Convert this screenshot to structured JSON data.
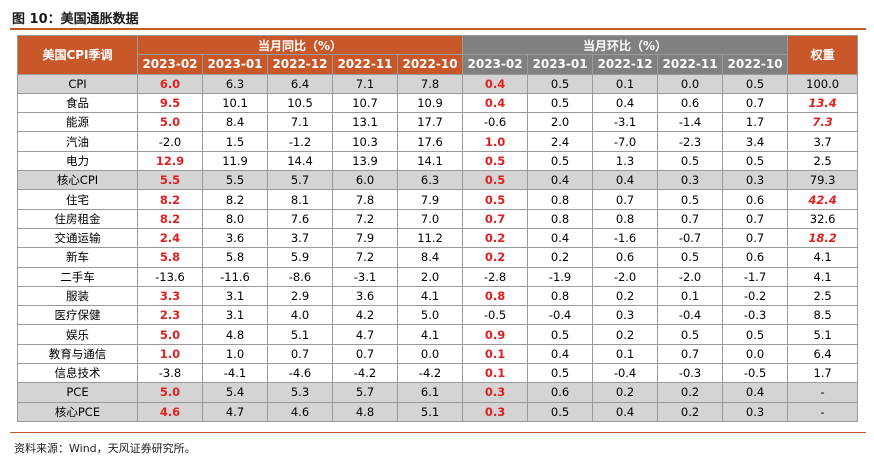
{
  "title": "图 10：美国通胀数据",
  "header": {
    "corner": "美国CPI季调",
    "yoy_group": "当月同比（%）",
    "mom_group": "当月环比（%）",
    "weight": "权重",
    "months": [
      "2023-02",
      "2023-01",
      "2022-12",
      "2022-11",
      "2022-10"
    ]
  },
  "rows": [
    {
      "label": "CPI",
      "level": 0,
      "shaded": true,
      "yoy": [
        "6.0",
        "6.3",
        "6.4",
        "7.1",
        "7.8"
      ],
      "mom": [
        "0.4",
        "0.5",
        "0.1",
        "0.0",
        "0.5"
      ],
      "weight": "100.0",
      "weight_style": ""
    },
    {
      "label": "食品",
      "level": 1,
      "shaded": false,
      "yoy": [
        "9.5",
        "10.1",
        "10.5",
        "10.7",
        "10.9"
      ],
      "mom": [
        "0.4",
        "0.5",
        "0.4",
        "0.6",
        "0.7"
      ],
      "weight": "13.4",
      "weight_style": "redital"
    },
    {
      "label": "能源",
      "level": 1,
      "shaded": false,
      "yoy": [
        "5.0",
        "8.4",
        "7.1",
        "13.1",
        "17.7"
      ],
      "mom": [
        "-0.6",
        "2.0",
        "-3.1",
        "-1.4",
        "1.7"
      ],
      "weight": "7.3",
      "weight_style": "redital"
    },
    {
      "label": "汽油",
      "level": 2,
      "shaded": false,
      "yoy": [
        "-2.0",
        "1.5",
        "-1.2",
        "10.3",
        "17.6"
      ],
      "mom": [
        "1.0",
        "2.4",
        "-7.0",
        "-2.3",
        "3.4"
      ],
      "weight": "3.7",
      "weight_style": ""
    },
    {
      "label": "电力",
      "level": 2,
      "shaded": false,
      "yoy": [
        "12.9",
        "11.9",
        "14.4",
        "13.9",
        "14.1"
      ],
      "mom": [
        "0.5",
        "0.5",
        "1.3",
        "0.5",
        "0.5"
      ],
      "weight": "2.5",
      "weight_style": ""
    },
    {
      "label": "核心CPI",
      "level": 0,
      "shaded": true,
      "yoy": [
        "5.5",
        "5.5",
        "5.7",
        "6.0",
        "6.3"
      ],
      "mom": [
        "0.5",
        "0.4",
        "0.4",
        "0.3",
        "0.3"
      ],
      "weight": "79.3",
      "weight_style": ""
    },
    {
      "label": "住宅",
      "level": 1,
      "shaded": false,
      "yoy": [
        "8.2",
        "8.2",
        "8.1",
        "7.8",
        "7.9"
      ],
      "mom": [
        "0.5",
        "0.8",
        "0.7",
        "0.5",
        "0.6"
      ],
      "weight": "42.4",
      "weight_style": "redital"
    },
    {
      "label": "住房租金",
      "level": 2,
      "shaded": false,
      "yoy": [
        "8.2",
        "8.0",
        "7.6",
        "7.2",
        "7.0"
      ],
      "mom": [
        "0.7",
        "0.8",
        "0.8",
        "0.7",
        "0.7"
      ],
      "weight": "32.6",
      "weight_style": ""
    },
    {
      "label": "交通运输",
      "level": 1,
      "shaded": false,
      "yoy": [
        "2.4",
        "3.6",
        "3.7",
        "7.9",
        "11.2"
      ],
      "mom": [
        "0.2",
        "0.4",
        "-1.6",
        "-0.7",
        "0.7"
      ],
      "weight": "18.2",
      "weight_style": "redital"
    },
    {
      "label": "新车",
      "level": 2,
      "shaded": false,
      "yoy": [
        "5.8",
        "5.8",
        "5.9",
        "7.2",
        "8.4"
      ],
      "mom": [
        "0.2",
        "0.2",
        "0.6",
        "0.5",
        "0.6"
      ],
      "weight": "4.1",
      "weight_style": ""
    },
    {
      "label": "二手车",
      "level": 2,
      "shaded": false,
      "yoy": [
        "-13.6",
        "-11.6",
        "-8.6",
        "-3.1",
        "2.0"
      ],
      "mom": [
        "-2.8",
        "-1.9",
        "-2.0",
        "-2.0",
        "-1.7"
      ],
      "weight": "4.1",
      "weight_style": ""
    },
    {
      "label": "服装",
      "level": 1,
      "shaded": false,
      "yoy": [
        "3.3",
        "3.1",
        "2.9",
        "3.6",
        "4.1"
      ],
      "mom": [
        "0.8",
        "0.8",
        "0.2",
        "0.1",
        "-0.2"
      ],
      "weight": "2.5",
      "weight_style": ""
    },
    {
      "label": "医疗保健",
      "level": 1,
      "shaded": false,
      "yoy": [
        "2.3",
        "3.1",
        "4.0",
        "4.2",
        "5.0"
      ],
      "mom": [
        "-0.5",
        "-0.4",
        "0.3",
        "-0.4",
        "-0.3"
      ],
      "weight": "8.5",
      "weight_style": ""
    },
    {
      "label": "娱乐",
      "level": 1,
      "shaded": false,
      "yoy": [
        "5.0",
        "4.8",
        "5.1",
        "4.7",
        "4.1"
      ],
      "mom": [
        "0.9",
        "0.5",
        "0.2",
        "0.5",
        "0.5"
      ],
      "weight": "5.1",
      "weight_style": ""
    },
    {
      "label": "教育与通信",
      "level": 1,
      "shaded": false,
      "yoy": [
        "1.0",
        "1.0",
        "0.7",
        "0.7",
        "0.0"
      ],
      "mom": [
        "0.1",
        "0.4",
        "0.1",
        "0.7",
        "0.0"
      ],
      "weight": "6.4",
      "weight_style": ""
    },
    {
      "label": "信息技术",
      "level": 1,
      "shaded": false,
      "yoy": [
        "-3.8",
        "-4.1",
        "-4.6",
        "-4.2",
        "-4.2"
      ],
      "mom": [
        "0.1",
        "0.5",
        "-0.4",
        "-0.3",
        "-0.5"
      ],
      "weight": "1.7",
      "weight_style": ""
    },
    {
      "label": "PCE",
      "level": 0,
      "shaded": true,
      "yoy": [
        "5.0",
        "5.4",
        "5.3",
        "5.7",
        "6.1"
      ],
      "mom": [
        "0.3",
        "0.6",
        "0.2",
        "0.2",
        "0.4"
      ],
      "weight": "-",
      "weight_style": ""
    },
    {
      "label": "核心PCE",
      "level": 0,
      "shaded": true,
      "yoy": [
        "4.6",
        "4.7",
        "4.6",
        "4.8",
        "5.1"
      ],
      "mom": [
        "0.3",
        "0.5",
        "0.4",
        "0.2",
        "0.3"
      ],
      "weight": "-",
      "weight_style": ""
    }
  ],
  "colors": {
    "accent_orange": "#c8582a",
    "header_gray": "#808080",
    "highlight_red": "#e02020",
    "row_shade": "#d4d4d4"
  },
  "source": "资料来源：Wind，天风证券研究所。"
}
